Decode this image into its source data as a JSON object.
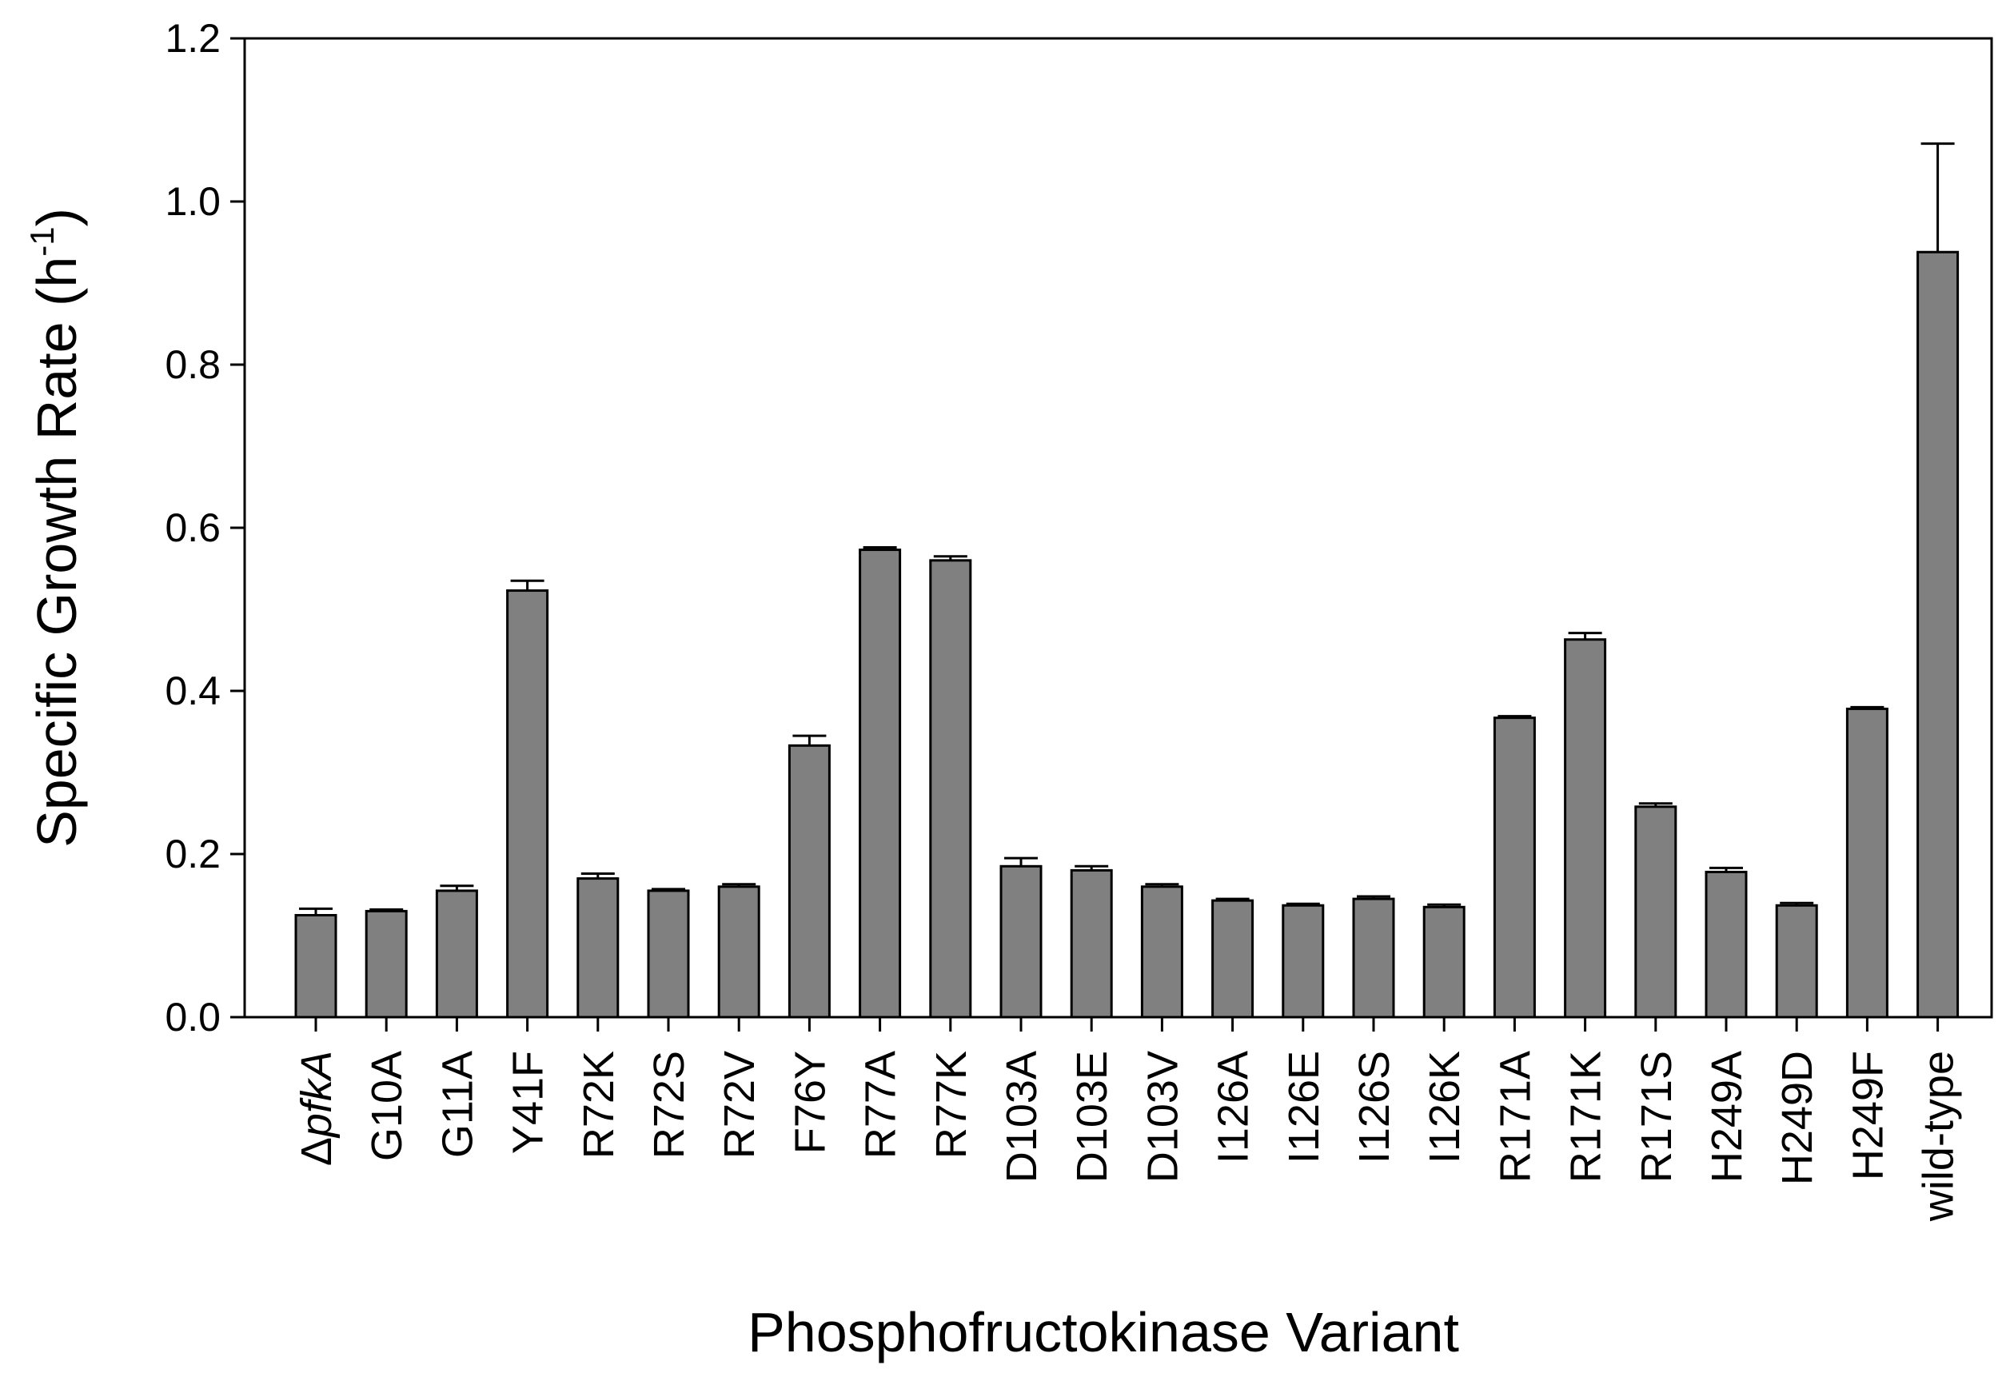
{
  "chart_data": {
    "type": "bar",
    "title": "",
    "xlabel": "Phosphofructokinase Variant",
    "ylabel_main": "Specific Growth Rate (h",
    "ylabel_sup": "-1",
    "ylabel_close": ")",
    "ylim": [
      0,
      1.2
    ],
    "yticks": [
      "0.0",
      "0.2",
      "0.4",
      "0.6",
      "0.8",
      "1.0",
      "1.2"
    ],
    "bar_color": "#808080",
    "grid": false,
    "legend": "none",
    "categories": [
      {
        "prefix": "Δ",
        "italic": "pfkA"
      },
      "G10A",
      "G11A",
      "Y41F",
      "R72K",
      "R72S",
      "R72V",
      "F76Y",
      "R77A",
      "R77K",
      "D103A",
      "D103E",
      "D103V",
      "I126A",
      "I126E",
      "I126S",
      "I126K",
      "R171A",
      "R171K",
      "R171S",
      "H249A",
      "H249D",
      "H249F",
      "wild-type"
    ],
    "values": [
      0.125,
      0.13,
      0.155,
      0.523,
      0.17,
      0.155,
      0.16,
      0.333,
      0.573,
      0.56,
      0.185,
      0.18,
      0.16,
      0.143,
      0.137,
      0.145,
      0.135,
      0.367,
      0.463,
      0.258,
      0.178,
      0.137,
      0.378,
      0.938
    ],
    "errors": [
      0.008,
      0.002,
      0.006,
      0.012,
      0.006,
      0.002,
      0.003,
      0.012,
      0.003,
      0.005,
      0.01,
      0.005,
      0.003,
      0.002,
      0.002,
      0.003,
      0.003,
      0.002,
      0.008,
      0.004,
      0.005,
      0.003,
      0.002,
      0.133
    ]
  }
}
